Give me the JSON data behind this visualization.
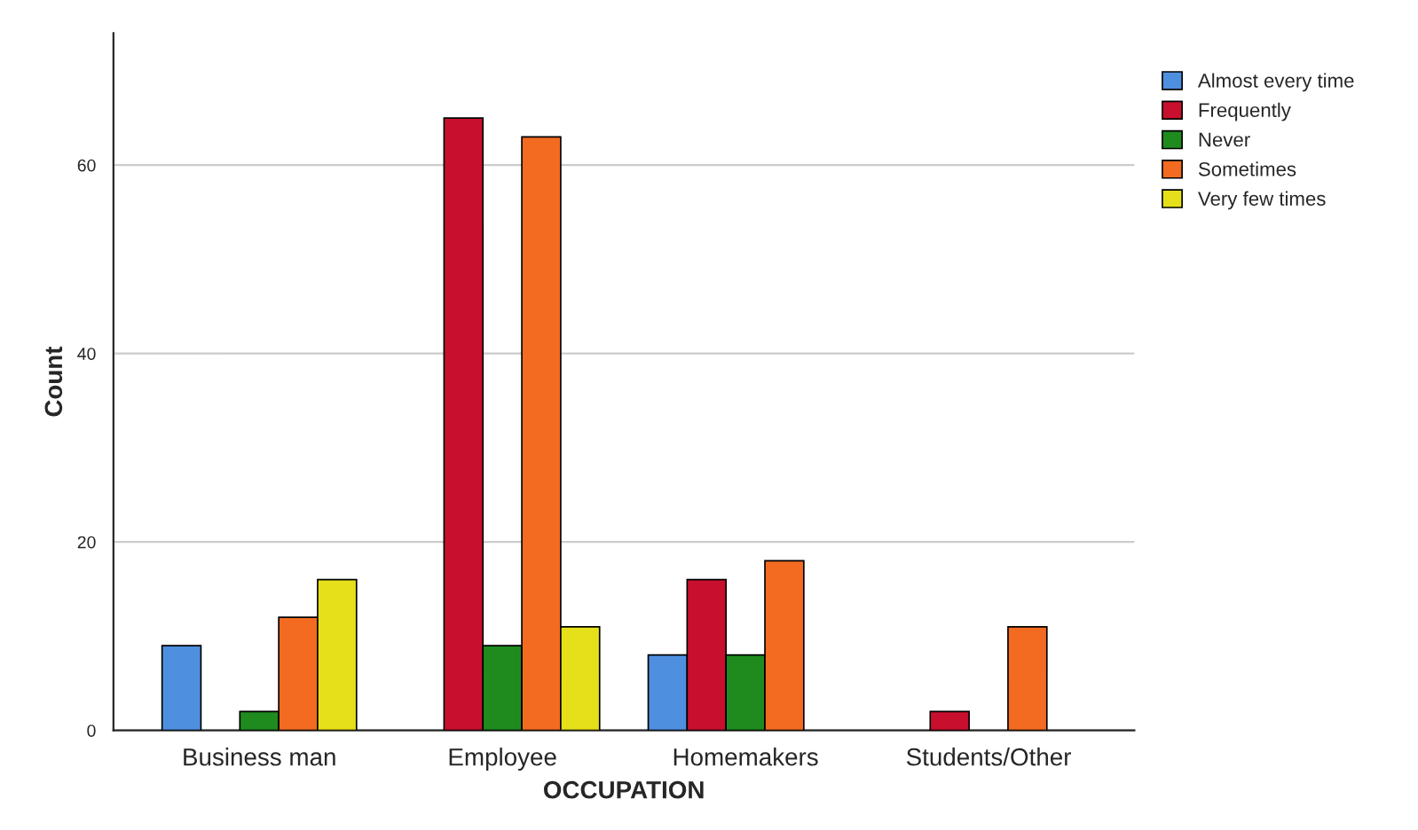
{
  "chart_data": {
    "type": "bar",
    "xlabel": "OCCUPATION",
    "ylabel": "Count",
    "categories": [
      "Business man",
      "Employee",
      "Homemakers",
      "Students/Other"
    ],
    "series": [
      {
        "name": "Almost every time",
        "color": "#4f8fe0",
        "values": [
          9,
          null,
          8,
          null
        ]
      },
      {
        "name": "Frequently",
        "color": "#c8102e",
        "values": [
          null,
          65,
          16,
          2
        ]
      },
      {
        "name": "Never",
        "color": "#1f8b1f",
        "values": [
          2,
          9,
          8,
          null
        ]
      },
      {
        "name": "Sometimes",
        "color": "#f26b21",
        "values": [
          12,
          63,
          18,
          11
        ]
      },
      {
        "name": "Very few times",
        "color": "#e6e01a",
        "values": [
          16,
          11,
          null,
          null
        ]
      }
    ],
    "ylim": [
      0,
      74
    ],
    "yticks": [
      0,
      20,
      40,
      60
    ],
    "grid": "y",
    "legend": "top right"
  }
}
